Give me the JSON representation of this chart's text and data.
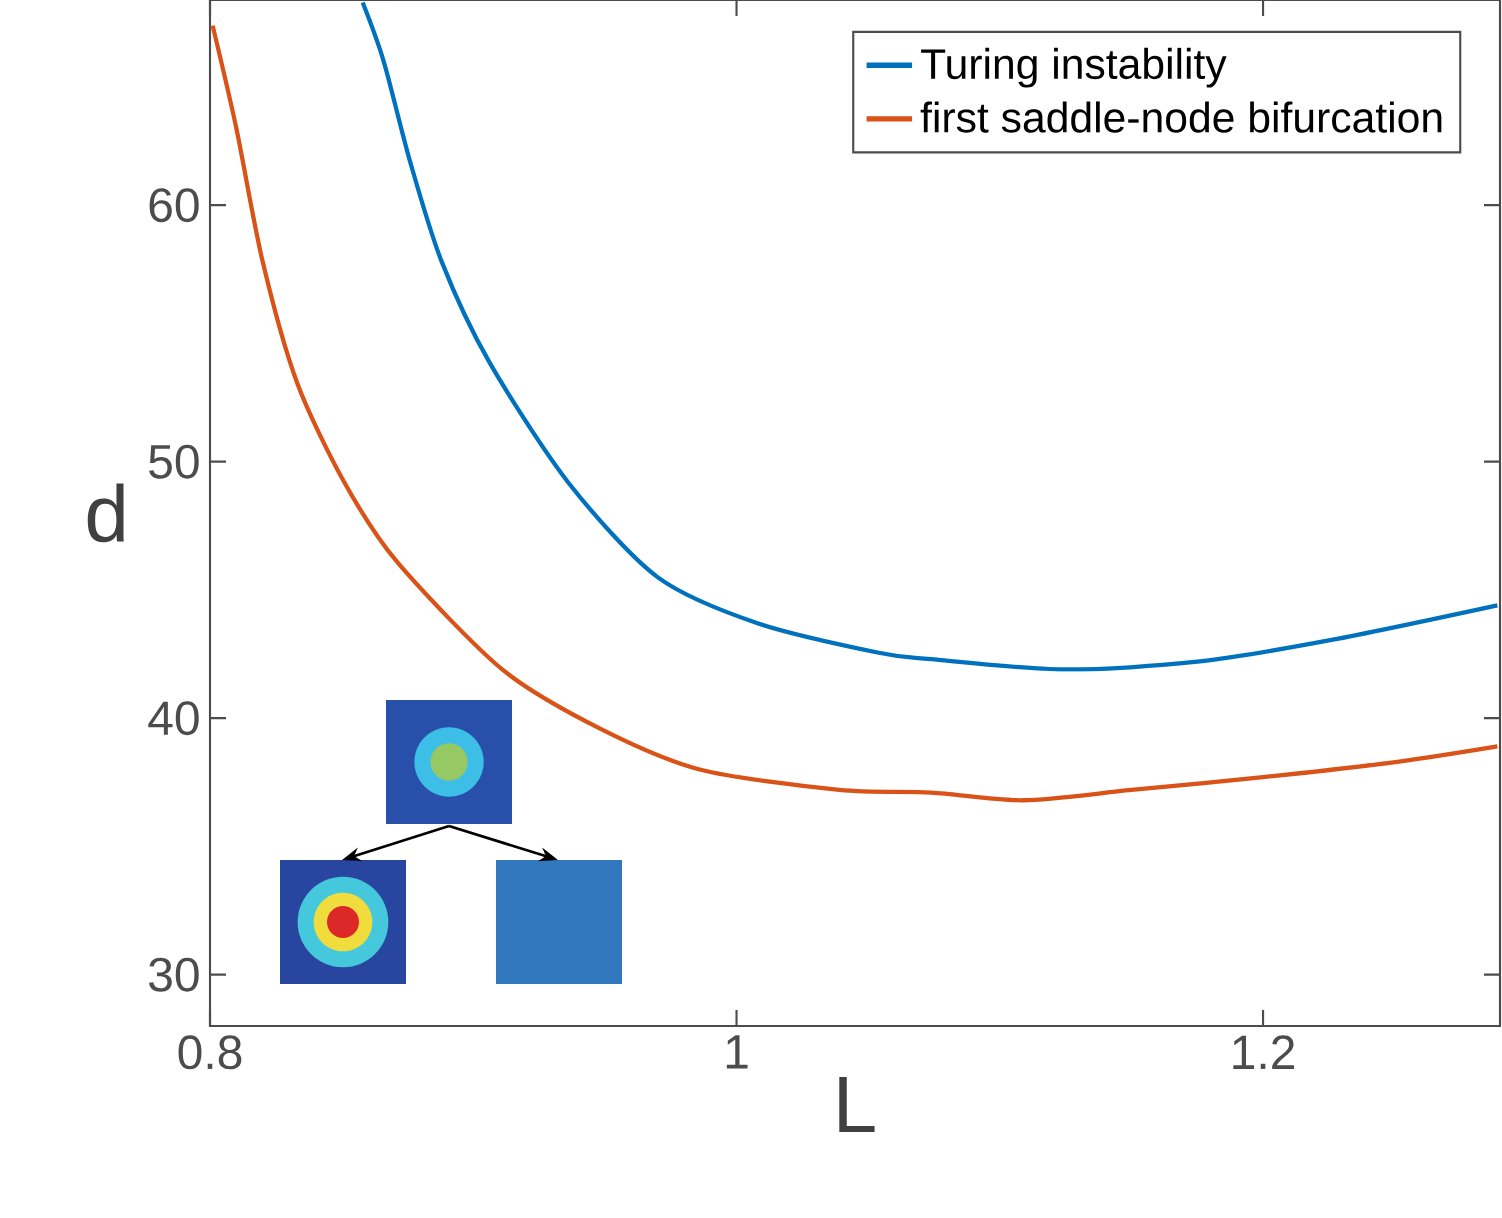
{
  "chart_data": {
    "type": "line",
    "xlabel": "L",
    "ylabel": "d",
    "xlim": [
      0.8,
      1.29
    ],
    "ylim": [
      28,
      68
    ],
    "xticks": [
      0.8,
      1,
      1.2
    ],
    "yticks": [
      30,
      40,
      50,
      60
    ],
    "legend": "top right",
    "grid": false,
    "marker": "none",
    "line_style": "solid",
    "series": [
      {
        "name": "Turing instability",
        "color": "#0072bd",
        "x": [
          0.858,
          0.866,
          0.876,
          0.888,
          0.906,
          0.936,
          0.97,
          1.008,
          1.054,
          1.074,
          1.124,
          1.175,
          1.226,
          1.289
        ],
        "values": [
          67.9,
          65.6,
          61.7,
          57.8,
          53.9,
          49.2,
          45.5,
          43.7,
          42.55,
          42.3,
          41.9,
          42.2,
          43.05,
          44.4
        ]
      },
      {
        "name": "first saddle-node bifurcation",
        "color": "#d95319",
        "x": [
          0.801,
          0.81,
          0.82,
          0.833,
          0.851,
          0.871,
          0.911,
          0.948,
          0.986,
          1.039,
          1.074,
          1.109,
          1.15,
          1.2,
          1.251,
          1.289
        ],
        "values": [
          67,
          63,
          57.8,
          53.1,
          49.2,
          46.1,
          41.9,
          39.6,
          38,
          37.2,
          37.1,
          36.8,
          37.2,
          37.7,
          38.3,
          38.9
        ]
      }
    ]
  }
}
